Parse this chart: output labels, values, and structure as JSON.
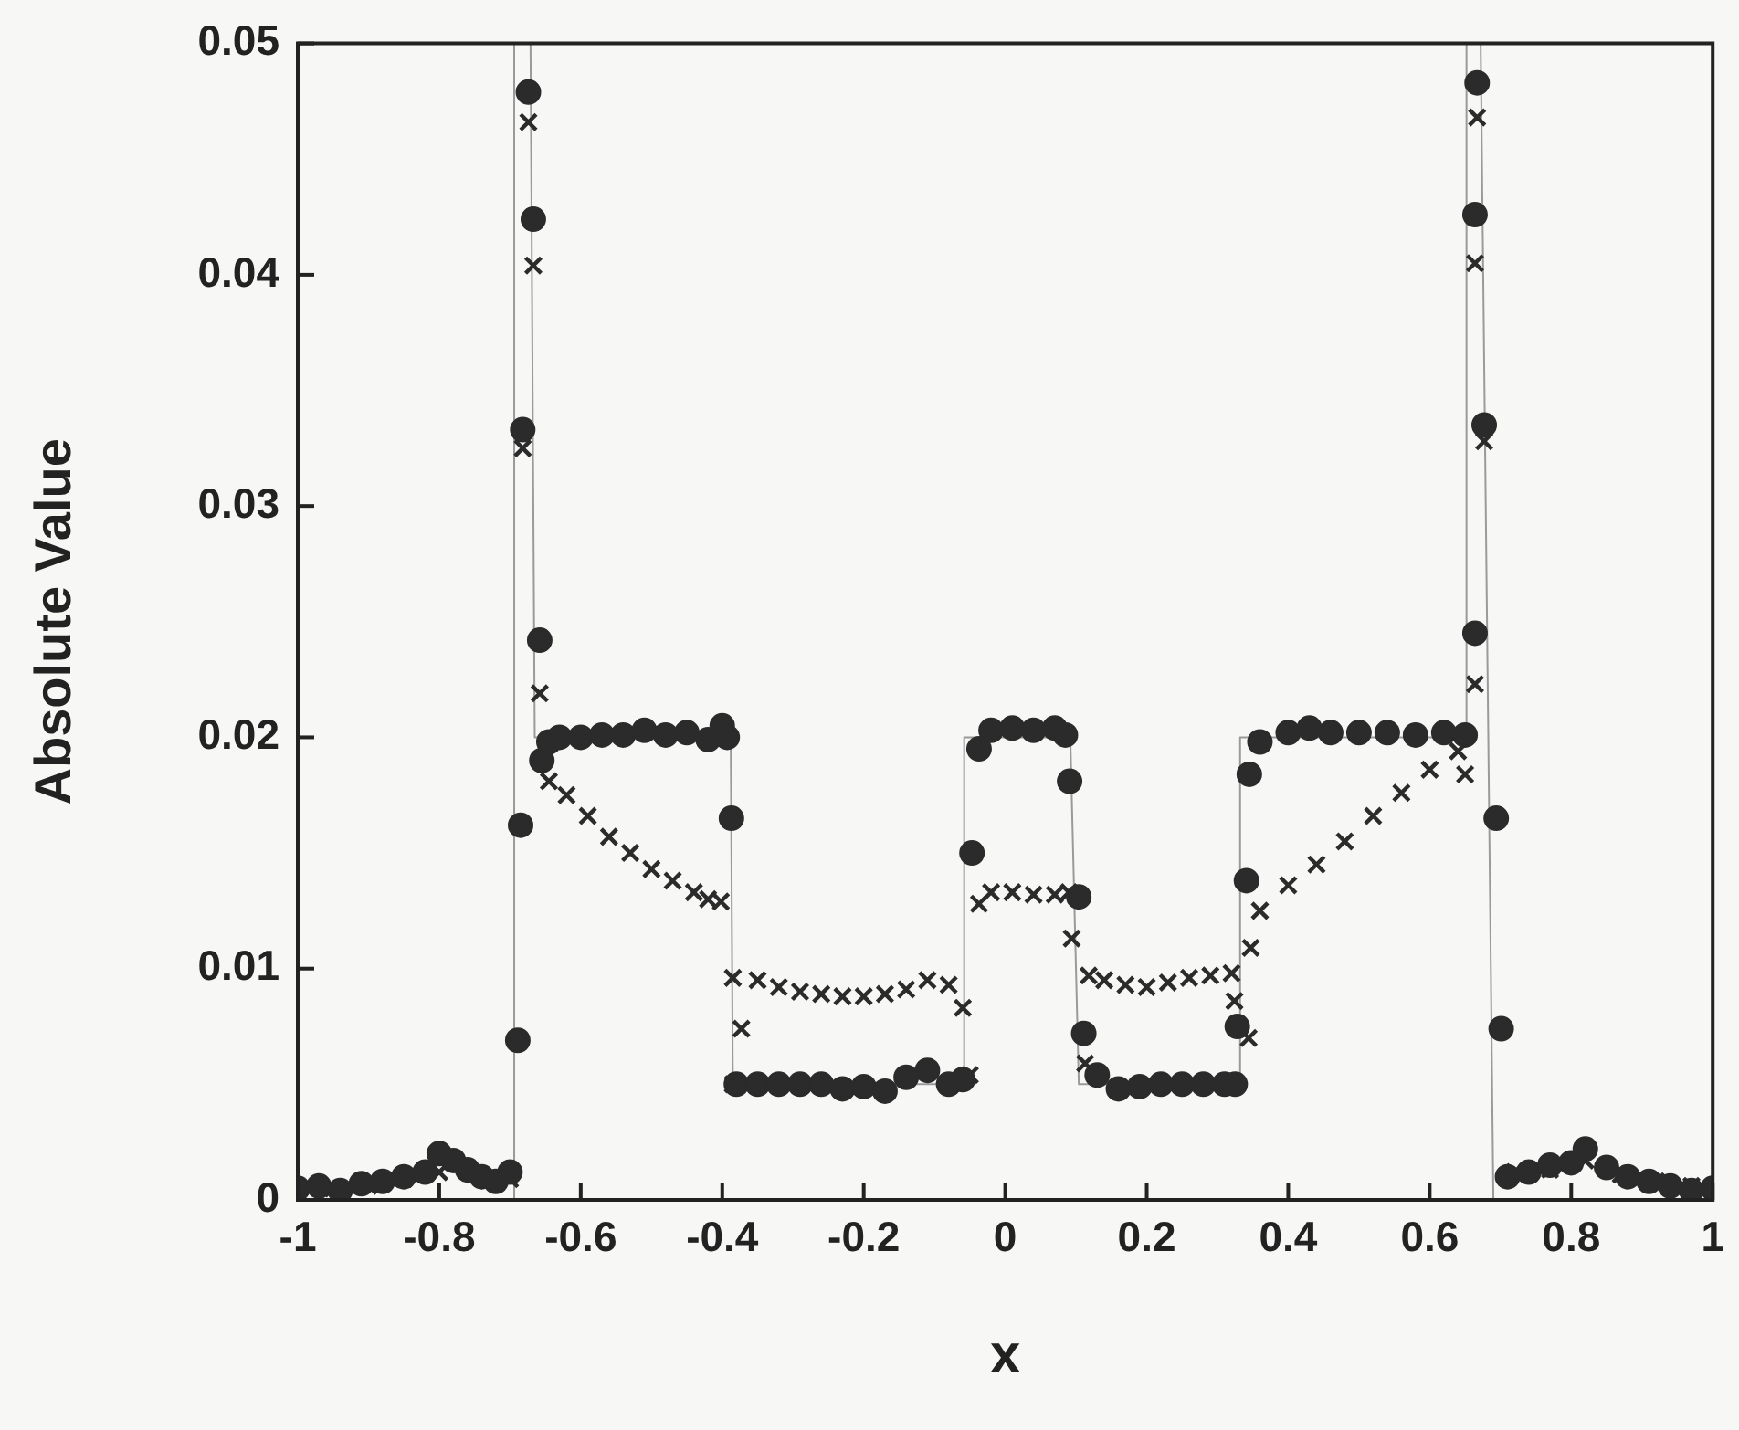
{
  "chart_data": {
    "type": "scatter",
    "xlabel": "x",
    "ylabel": "Absolute Value",
    "xlim": [
      -1,
      1
    ],
    "ylim": [
      0,
      0.05
    ],
    "xticks": [
      -1,
      -0.8,
      -0.6,
      -0.4,
      -0.2,
      0,
      0.2,
      0.4,
      0.6,
      0.8,
      1
    ],
    "yticks": [
      0,
      0.01,
      0.02,
      0.03,
      0.04,
      0.05
    ],
    "grid": false,
    "legend": false,
    "series": [
      {
        "type": "line",
        "color": "#9a9a9a",
        "marker": "none",
        "line_style": "solid",
        "x": [
          -1,
          -0.694,
          -0.694,
          -0.671,
          -0.665,
          -0.388,
          -0.385,
          -0.058,
          -0.058,
          0.092,
          0.104,
          0.332,
          0.332,
          0.652,
          0.652,
          0.672,
          0.69,
          1
        ],
        "values": [
          0,
          0,
          0.05,
          0.05,
          0.02,
          0.02,
          0.005,
          0.005,
          0.02,
          0.02,
          0.005,
          0.005,
          0.02,
          0.02,
          0.05,
          0.05,
          0,
          0
        ]
      },
      {
        "color": "#2b2b2b",
        "marker": "circle",
        "x": [
          -1,
          -0.97,
          -0.94,
          -0.91,
          -0.88,
          -0.85,
          -0.82,
          -0.8,
          -0.78,
          -0.76,
          -0.74,
          -0.72,
          -0.7,
          -0.689,
          -0.685,
          -0.682,
          -0.674,
          -0.667,
          -0.658,
          -0.655,
          -0.645,
          -0.63,
          -0.6,
          -0.57,
          -0.54,
          -0.51,
          -0.48,
          -0.45,
          -0.42,
          -0.4,
          -0.393,
          -0.387,
          -0.38,
          -0.35,
          -0.32,
          -0.29,
          -0.26,
          -0.23,
          -0.2,
          -0.17,
          -0.14,
          -0.11,
          -0.08,
          -0.06,
          -0.047,
          -0.037,
          -0.02,
          0.01,
          0.04,
          0.07,
          0.085,
          0.091,
          0.104,
          0.111,
          0.13,
          0.16,
          0.19,
          0.22,
          0.25,
          0.28,
          0.31,
          0.325,
          0.328,
          0.341,
          0.345,
          0.36,
          0.4,
          0.43,
          0.46,
          0.5,
          0.54,
          0.58,
          0.62,
          0.65,
          0.664,
          0.664,
          0.667,
          0.677,
          0.694,
          0.701,
          0.71,
          0.74,
          0.77,
          0.8,
          0.82,
          0.85,
          0.88,
          0.91,
          0.94,
          0.97,
          1
        ],
        "values": [
          0.0005,
          0.0006,
          0.0004,
          0.0007,
          0.0008,
          0.001,
          0.0012,
          0.002,
          0.0017,
          0.0013,
          0.001,
          0.0008,
          0.0012,
          0.0069,
          0.0162,
          0.0333,
          0.0479,
          0.0424,
          0.0242,
          0.019,
          0.0198,
          0.02,
          0.02,
          0.0201,
          0.0201,
          0.0203,
          0.0201,
          0.0202,
          0.0199,
          0.0205,
          0.02,
          0.0165,
          0.005,
          0.005,
          0.005,
          0.005,
          0.005,
          0.0048,
          0.0049,
          0.0047,
          0.0053,
          0.0056,
          0.005,
          0.0052,
          0.015,
          0.0195,
          0.0203,
          0.0204,
          0.0203,
          0.0204,
          0.0201,
          0.0181,
          0.0131,
          0.0072,
          0.0054,
          0.0048,
          0.0049,
          0.005,
          0.005,
          0.005,
          0.005,
          0.005,
          0.0075,
          0.0138,
          0.0184,
          0.0198,
          0.0202,
          0.0204,
          0.0202,
          0.0202,
          0.0202,
          0.0201,
          0.0202,
          0.0201,
          0.0245,
          0.0426,
          0.0483,
          0.0335,
          0.0165,
          0.0074,
          0.001,
          0.0012,
          0.0015,
          0.0016,
          0.0022,
          0.0014,
          0.001,
          0.0008,
          0.0006,
          0.0004,
          0.0005
        ]
      },
      {
        "color": "#2b2b2b",
        "marker": "cross",
        "x": [
          -0.95,
          -0.9,
          -0.85,
          -0.8,
          -0.75,
          -0.7,
          -0.682,
          -0.674,
          -0.667,
          -0.658,
          -0.645,
          -0.62,
          -0.59,
          -0.56,
          -0.53,
          -0.5,
          -0.47,
          -0.44,
          -0.42,
          -0.402,
          -0.385,
          -0.385,
          -0.373,
          -0.35,
          -0.32,
          -0.29,
          -0.26,
          -0.23,
          -0.2,
          -0.17,
          -0.14,
          -0.11,
          -0.08,
          -0.06,
          -0.05,
          -0.037,
          -0.02,
          0.01,
          0.04,
          0.07,
          0.09,
          0.094,
          0.113,
          0.118,
          0.14,
          0.17,
          0.2,
          0.23,
          0.26,
          0.29,
          0.32,
          0.324,
          0.344,
          0.347,
          0.36,
          0.4,
          0.44,
          0.48,
          0.52,
          0.56,
          0.6,
          0.64,
          0.65,
          0.664,
          0.664,
          0.667,
          0.677,
          0.72,
          0.77,
          0.82,
          0.87,
          0.92,
          0.97
        ],
        "values": [
          0.0005,
          0.0006,
          0.0009,
          0.0012,
          0.0011,
          0.0009,
          0.0325,
          0.0466,
          0.0404,
          0.0219,
          0.0181,
          0.0175,
          0.0166,
          0.0157,
          0.015,
          0.0143,
          0.0138,
          0.0133,
          0.013,
          0.0129,
          0.0096,
          0.005,
          0.0074,
          0.0095,
          0.0092,
          0.009,
          0.0089,
          0.0088,
          0.0088,
          0.0089,
          0.0091,
          0.0095,
          0.0093,
          0.0083,
          0.0054,
          0.0128,
          0.0133,
          0.0133,
          0.0132,
          0.0132,
          0.0133,
          0.0113,
          0.0059,
          0.0097,
          0.0095,
          0.0093,
          0.0092,
          0.0094,
          0.0096,
          0.0097,
          0.0098,
          0.0086,
          0.007,
          0.0109,
          0.0125,
          0.0136,
          0.0145,
          0.0155,
          0.0166,
          0.0176,
          0.0186,
          0.0194,
          0.0184,
          0.0223,
          0.0405,
          0.0468,
          0.0328,
          0.0012,
          0.0013,
          0.0017,
          0.0011,
          0.0008,
          0.0006
        ]
      }
    ]
  }
}
